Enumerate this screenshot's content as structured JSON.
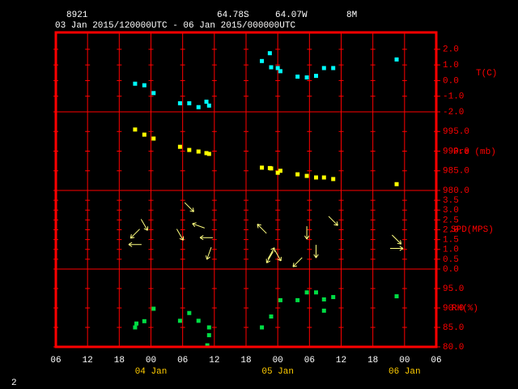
{
  "header": {
    "station": "8921",
    "lat": "64.78S",
    "lon": "64.07W",
    "height": "8M",
    "period": "03 Jan 2015/120000UTC - 06 Jan 2015/000000UTC"
  },
  "page_number": "2",
  "chart_data": [
    {
      "type": "scatter",
      "ylabel": "T(C)",
      "color": "#00ffff",
      "ylim": [
        -2,
        3.08
      ],
      "yticks": [
        {
          "value": 2,
          "label": "2.0"
        },
        {
          "value": 1,
          "label": "1.0"
        },
        {
          "value": 0,
          "label": "0.0"
        },
        {
          "value": -1,
          "label": "-1.0"
        },
        {
          "value": -2,
          "label": "-2.0"
        }
      ],
      "x": [
        "2015-01-03T21:00",
        "2015-01-03T22:45",
        "2015-01-04T00:30",
        "2015-01-04T05:30",
        "2015-01-04T07:15",
        "2015-01-04T09:00",
        "2015-01-04T10:30",
        "2015-01-04T11:00",
        "2015-01-04T21:00",
        "2015-01-04T22:30",
        "2015-01-04T22:45",
        "2015-01-05T00:00",
        "2015-01-05T00:30",
        "2015-01-05T03:45",
        "2015-01-05T05:30",
        "2015-01-05T07:15",
        "2015-01-05T08:45",
        "2015-01-05T10:30",
        "2015-01-05T22:30"
      ],
      "values": [
        -0.2,
        -0.3,
        -0.8,
        -1.45,
        -1.45,
        -1.7,
        -1.35,
        -1.6,
        1.25,
        1.75,
        0.85,
        0.8,
        0.6,
        0.25,
        0.2,
        0.3,
        0.8,
        0.8,
        1.35
      ]
    },
    {
      "type": "scatter",
      "ylabel": "Pre (mb)",
      "color": "#ffff00",
      "ylim": [
        980,
        1000
      ],
      "yticks": [
        {
          "value": 995,
          "label": "995.0"
        },
        {
          "value": 990,
          "label": "990.0"
        },
        {
          "value": 985,
          "label": "985.0"
        },
        {
          "value": 980,
          "label": "980.0"
        }
      ],
      "x": [
        "2015-01-03T21:00",
        "2015-01-03T22:45",
        "2015-01-04T00:30",
        "2015-01-04T05:30",
        "2015-01-04T07:15",
        "2015-01-04T09:00",
        "2015-01-04T10:30",
        "2015-01-04T11:00",
        "2015-01-04T21:00",
        "2015-01-04T22:30",
        "2015-01-04T22:45",
        "2015-01-05T00:00",
        "2015-01-05T00:30",
        "2015-01-05T03:45",
        "2015-01-05T05:30",
        "2015-01-05T07:15",
        "2015-01-05T08:45",
        "2015-01-05T10:30",
        "2015-01-05T22:30"
      ],
      "values": [
        995.5,
        994.2,
        993.2,
        991.1,
        990.3,
        989.9,
        989.5,
        989.3,
        985.8,
        985.7,
        985.6,
        984.5,
        985.0,
        984.1,
        983.7,
        983.3,
        983.3,
        982.9,
        981.6
      ]
    },
    {
      "type": "quiver",
      "ylabel": "SPD(MPS)",
      "color": "#ffff80",
      "ylim": [
        0,
        4
      ],
      "yticks": [
        {
          "value": 3.5,
          "label": "3.5"
        },
        {
          "value": 3,
          "label": "3.0"
        },
        {
          "value": 2.5,
          "label": "2.5"
        },
        {
          "value": 2,
          "label": "2.0"
        },
        {
          "value": 1.5,
          "label": "1.5"
        },
        {
          "value": 1,
          "label": "1.0"
        },
        {
          "value": 0.5,
          "label": "0.5"
        },
        {
          "value": 0,
          "label": "0.0"
        }
      ],
      "x": [
        "2015-01-03T21:00",
        "2015-01-03T21:00",
        "2015-01-03T22:45",
        "2015-01-04T05:30",
        "2015-01-04T07:15",
        "2015-01-04T09:00",
        "2015-01-04T10:30",
        "2015-01-04T11:00",
        "2015-01-04T21:00",
        "2015-01-04T22:30",
        "2015-01-04T22:45",
        "2015-01-05T00:00",
        "2015-01-05T03:45",
        "2015-01-05T05:30",
        "2015-01-05T07:15",
        "2015-01-05T10:30",
        "2015-01-05T22:30",
        "2015-01-05T22:30"
      ],
      "values": [
        1.8,
        1.25,
        2.25,
        1.75,
        3.15,
        2.2,
        1.6,
        0.8,
        2.05,
        0.6,
        0.8,
        0.7,
        0.35,
        1.85,
        0.9,
        2.45,
        1.5,
        1.05
      ],
      "directions": [
        225,
        180,
        300,
        300,
        315,
        160,
        180,
        250,
        135,
        240,
        60,
        300,
        225,
        270,
        270,
        315,
        315,
        0
      ]
    },
    {
      "type": "scatter",
      "ylabel": "RH(%)",
      "color": "#00dd44",
      "ylim": [
        80,
        100
      ],
      "yticks": [
        {
          "value": 95,
          "label": "95.0"
        },
        {
          "value": 90,
          "label": "90.0"
        },
        {
          "value": 85,
          "label": "85.0"
        },
        {
          "value": 80,
          "label": "80.0"
        }
      ],
      "x": [
        "2015-01-03T21:00",
        "2015-01-03T21:15",
        "2015-01-03T22:45",
        "2015-01-04T00:30",
        "2015-01-04T05:30",
        "2015-01-04T07:15",
        "2015-01-04T09:00",
        "2015-01-04T10:40",
        "2015-01-04T11:00",
        "2015-01-04T11:00",
        "2015-01-04T21:00",
        "2015-01-04T22:45",
        "2015-01-05T00:30",
        "2015-01-05T03:45",
        "2015-01-05T05:30",
        "2015-01-05T07:15",
        "2015-01-05T08:45",
        "2015-01-05T08:45",
        "2015-01-05T10:30",
        "2015-01-05T22:30"
      ],
      "values": [
        85,
        86,
        86.6,
        89.8,
        86.7,
        88.7,
        86.7,
        80.4,
        85,
        83,
        85,
        87.8,
        92,
        92,
        94,
        94,
        89.3,
        92.2,
        92.8,
        93
      ],
      "xlim": [
        "2015-01-03T06:00",
        "2015-01-06T06:00"
      ],
      "xticks": [
        {
          "value": "2015-01-03T06:00",
          "label": "06"
        },
        {
          "value": "2015-01-03T12:00",
          "label": "12"
        },
        {
          "value": "2015-01-03T18:00",
          "label": "18"
        },
        {
          "value": "2015-01-04T00:00",
          "label": "00"
        },
        {
          "value": "2015-01-04T06:00",
          "label": "06"
        },
        {
          "value": "2015-01-04T12:00",
          "label": "12"
        },
        {
          "value": "2015-01-04T18:00",
          "label": "18"
        },
        {
          "value": "2015-01-05T00:00",
          "label": "00"
        },
        {
          "value": "2015-01-05T06:00",
          "label": "06"
        },
        {
          "value": "2015-01-05T12:00",
          "label": "12"
        },
        {
          "value": "2015-01-05T18:00",
          "label": "18"
        },
        {
          "value": "2015-01-06T00:00",
          "label": "00"
        },
        {
          "value": "2015-01-06T06:00",
          "label": "06"
        }
      ],
      "xday_labels": [
        {
          "value": "2015-01-04T00:00",
          "label": "04 Jan"
        },
        {
          "value": "2015-01-05T00:00",
          "label": "05 Jan"
        },
        {
          "value": "2015-01-06T00:00",
          "label": "06 Jan"
        }
      ]
    }
  ]
}
